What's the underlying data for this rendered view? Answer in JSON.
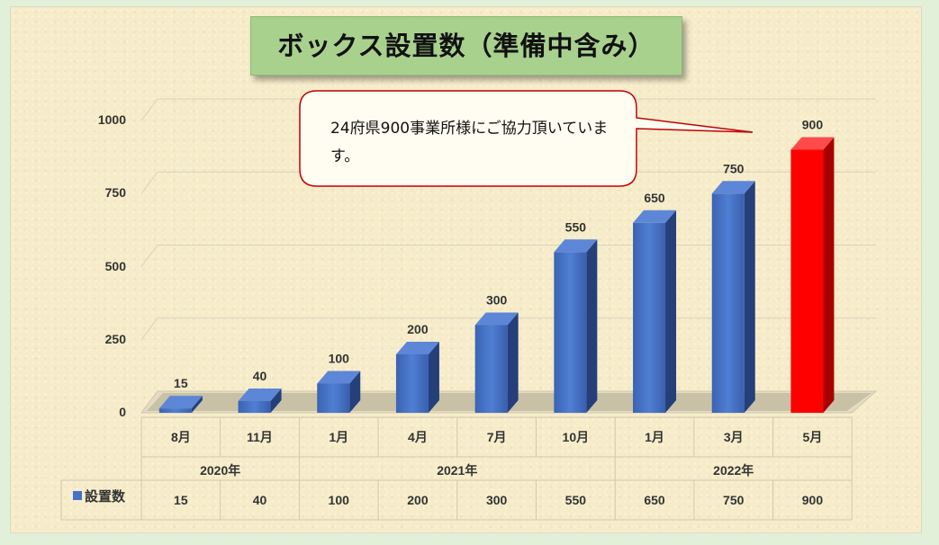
{
  "chart_data": {
    "type": "bar",
    "title": "ボックス設置数（準備中含み）",
    "categories": [
      "8月",
      "11月",
      "1月",
      "4月",
      "7月",
      "10月",
      "1月",
      "3月",
      "5月"
    ],
    "year_groups": [
      {
        "label": "2020年",
        "span": 2
      },
      {
        "label": "2021年",
        "span": 4
      },
      {
        "label": "2022年",
        "span": 3
      }
    ],
    "series": [
      {
        "name": "設置数",
        "values": [
          15,
          40,
          100,
          200,
          300,
          550,
          650,
          750,
          900
        ]
      }
    ],
    "data_labels": [
      "15",
      "40",
      "100",
      "200",
      "300",
      "550",
      "650",
      "750",
      "900"
    ],
    "yticks": [
      "0",
      "250",
      "500",
      "750",
      "1000"
    ],
    "ylim": [
      0,
      1000
    ],
    "colors": {
      "bar": "#4472c4",
      "highlight": "#ff0000"
    },
    "highlight_index": 8,
    "grid": true,
    "annotation": "24府県900事業所様にご協力頂いています。",
    "legend_position": "data-table-left"
  }
}
